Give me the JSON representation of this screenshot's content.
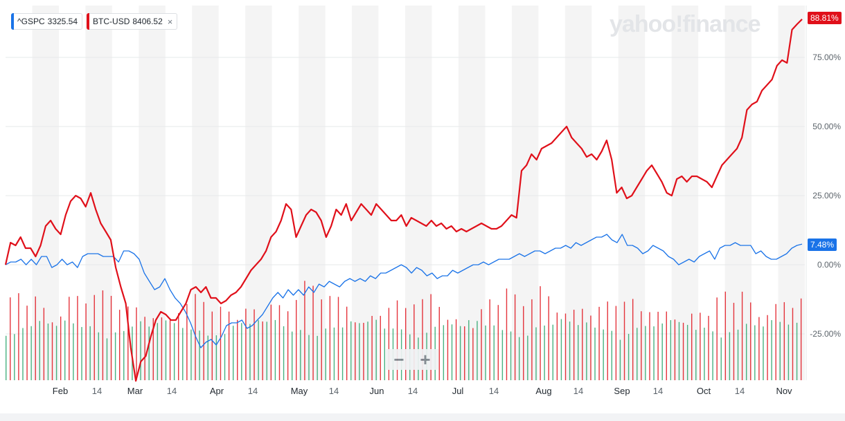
{
  "legend": [
    {
      "symbol": "^GSPC",
      "price": "3325.54",
      "color": "#1a73e8",
      "closable": false
    },
    {
      "symbol": "BTC-USD",
      "price": "8406.52",
      "color": "#e0101a",
      "closable": true
    }
  ],
  "close_icon": "×",
  "watermark": "yahoo!finance",
  "zoom": {
    "minus": "−",
    "plus": "+"
  },
  "end_tags": {
    "btc": "88.81%",
    "spx": "7.48%"
  },
  "chart_data": {
    "type": "line",
    "x_ticks": [
      "Feb",
      "14",
      "Mar",
      "14",
      "Apr",
      "14",
      "May",
      "14",
      "Jun",
      "14",
      "Jul",
      "14",
      "Aug",
      "14",
      "Sep",
      "14",
      "Oct",
      "14",
      "Nov"
    ],
    "y_ticks": [
      "75.00%",
      "50.00%",
      "25.00%",
      "0.00%",
      "-25.00%"
    ],
    "ylim": [
      -42,
      92
    ],
    "series": [
      {
        "name": "^GSPC",
        "color": "#1a73e8",
        "values": [
          0,
          1,
          1,
          2,
          0,
          2,
          0,
          3,
          3,
          -1,
          0,
          2,
          0,
          1,
          -1,
          3,
          4,
          4,
          4,
          3,
          3,
          3,
          1,
          5,
          5,
          4,
          2,
          -3,
          -6,
          -9,
          -8,
          -5,
          -9,
          -12,
          -14,
          -17,
          -21,
          -26,
          -30,
          -28,
          -27,
          -29,
          -26,
          -22,
          -21,
          -21,
          -20,
          -23,
          -22,
          -20,
          -18,
          -15,
          -12,
          -10,
          -12,
          -9,
          -11,
          -9,
          -11,
          -8,
          -10,
          -7,
          -8,
          -6,
          -7,
          -8,
          -6,
          -5,
          -6,
          -5,
          -6,
          -4,
          -5,
          -3,
          -3,
          -2,
          -1,
          0,
          -1,
          -3,
          -1,
          -2,
          -4,
          -3,
          -5,
          -4,
          -4,
          -2,
          -3,
          -2,
          -1,
          0,
          0,
          1,
          0,
          1,
          2,
          2,
          2,
          3,
          4,
          3,
          4,
          5,
          5,
          4,
          5,
          6,
          6,
          7,
          6,
          8,
          7,
          8,
          9,
          10,
          10,
          11,
          9,
          8,
          11,
          7,
          7,
          6,
          4,
          5,
          7,
          6,
          5,
          3,
          2,
          0,
          1,
          2,
          1,
          3,
          4,
          5,
          2,
          6,
          7,
          7,
          8,
          7,
          7,
          7,
          4,
          5,
          3,
          2,
          2,
          3,
          4,
          6,
          7,
          7.48
        ]
      },
      {
        "name": "BTC-USD",
        "color": "#e0101a",
        "values": [
          0,
          8,
          7,
          10,
          6,
          6,
          3,
          7,
          14,
          16,
          13,
          11,
          18,
          23,
          25,
          24,
          21,
          26,
          20,
          15,
          12,
          9,
          -1,
          -8,
          -14,
          -30,
          -42,
          -35,
          -33,
          -26,
          -20,
          -17,
          -18,
          -20,
          -20,
          -17,
          -14,
          -9,
          -8,
          -10,
          -8,
          -12,
          -12,
          -14,
          -13,
          -11,
          -10,
          -8,
          -5,
          -2,
          0,
          2,
          5,
          10,
          12,
          16,
          22,
          20,
          10,
          14,
          18,
          20,
          19,
          16,
          10,
          14,
          20,
          18,
          22,
          16,
          19,
          22,
          20,
          18,
          22,
          20,
          18,
          16,
          16,
          18,
          14,
          17,
          16,
          15,
          14,
          16,
          14,
          15,
          13,
          14,
          12,
          13,
          12,
          13,
          14,
          15,
          14,
          13,
          13,
          14,
          16,
          18,
          17,
          34,
          36,
          40,
          38,
          42,
          43,
          44,
          46,
          48,
          50,
          46,
          44,
          42,
          39,
          40,
          38,
          41,
          45,
          38,
          26,
          28,
          24,
          25,
          28,
          31,
          34,
          36,
          33,
          30,
          26,
          25,
          31,
          32,
          30,
          32,
          32,
          31,
          30,
          28,
          32,
          36,
          38,
          40,
          42,
          46,
          56,
          58,
          59,
          63,
          65,
          67,
          72,
          74,
          73,
          85,
          87,
          88.81
        ]
      }
    ],
    "volume": [
      {
        "color": "#29a36a",
        "heights": [
          0.42,
          0.4,
          0.42,
          0.41,
          0.43,
          0.4,
          0.38,
          0.42,
          0.41,
          0.4,
          0.43,
          0.41,
          0.39,
          0.42,
          0.4,
          0.41,
          0.43,
          0.38,
          0.4,
          0.42,
          0.41,
          0.39,
          0.4,
          0.42,
          0.41,
          0.4,
          0.38,
          0.42
        ]
      },
      {
        "color": "#e0101a",
        "heights": [
          0.58,
          0.62,
          0.55,
          0.65,
          0.6,
          0.52,
          0.58,
          0.7,
          0.66,
          0.57,
          0.61,
          0.63,
          0.59,
          0.5,
          0.54,
          0.56,
          0.52,
          0.55,
          0.58,
          0.51,
          0.53,
          0.57,
          0.62,
          0.55,
          0.48,
          0.52,
          0.5,
          0.46
        ]
      }
    ]
  }
}
